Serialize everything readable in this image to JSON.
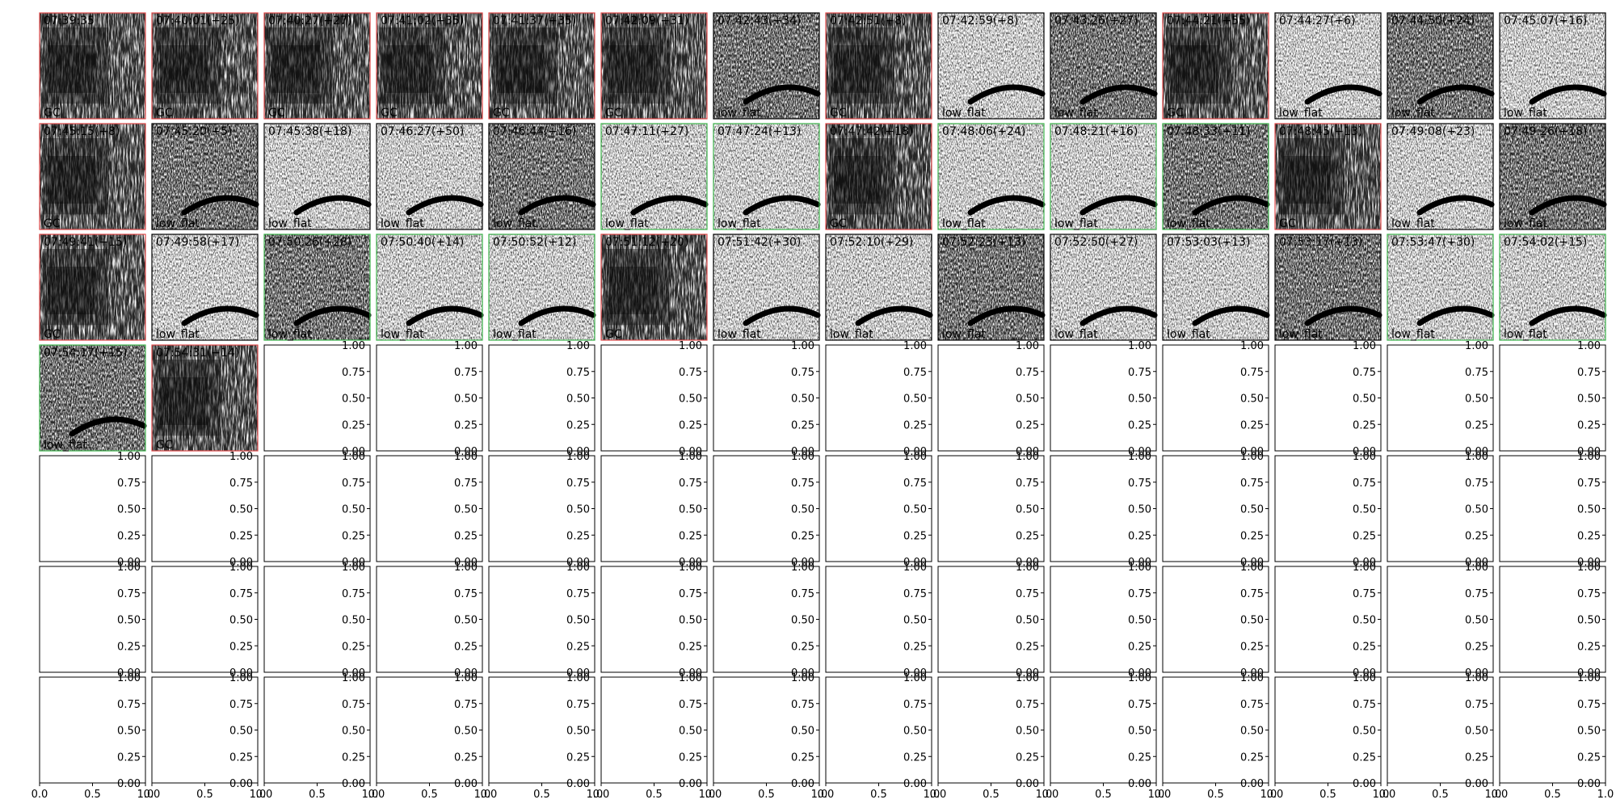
{
  "chart_data": {
    "type": "spectrogram-grid",
    "grid": {
      "rows": 7,
      "cols": 14
    },
    "border_colors": {
      "GC": "#e04a4a",
      "low_flat": "#000000",
      "green": "#3cb44b"
    },
    "empty_axis": {
      "xlim": [
        0.0,
        1.0
      ],
      "ylim": [
        0.0,
        1.0
      ],
      "x_ticks": [
        "0.0",
        "0.5",
        "1.0"
      ],
      "y_ticks": [
        "0.00",
        "0.25",
        "0.50",
        "0.75",
        "1.00"
      ]
    },
    "panels": [
      {
        "time": "07:39:35",
        "label": "GC",
        "border": "GC"
      },
      {
        "time": "07:40:01(+25)",
        "label": "GC",
        "border": "GC"
      },
      {
        "time": "07:40:27(+27)",
        "label": "GC",
        "border": "GC"
      },
      {
        "time": "07:41:02(+35)",
        "label": "GC",
        "border": "GC"
      },
      {
        "time": "07:41:37(+35)",
        "label": "GC",
        "border": "GC"
      },
      {
        "time": "07:42:09(+31)",
        "label": "GC",
        "border": "GC"
      },
      {
        "time": "07:42:43(+34)",
        "label": "low_flat",
        "border": "low_flat"
      },
      {
        "time": "07:42:51(+8)",
        "label": "GC",
        "border": "GC"
      },
      {
        "time": "07:42:59(+8)",
        "label": "low_flat",
        "border": "low_flat"
      },
      {
        "time": "07:43:26(+27)",
        "label": "low_flat",
        "border": "low_flat"
      },
      {
        "time": "07:44:21(+55)",
        "label": "GC",
        "border": "GC"
      },
      {
        "time": "07:44:27(+6)",
        "label": "low_flat",
        "border": "low_flat"
      },
      {
        "time": "07:44:50(+24)",
        "label": "low_flat",
        "border": "low_flat"
      },
      {
        "time": "07:45:07(+16)",
        "label": "low_flat",
        "border": "low_flat"
      },
      {
        "time": "07:45:15(+8)",
        "label": "GC",
        "border": "GC"
      },
      {
        "time": "07:45:20(+5)",
        "label": "low_flat",
        "border": "low_flat"
      },
      {
        "time": "07:45:38(+18)",
        "label": "low_flat",
        "border": "low_flat"
      },
      {
        "time": "07:46:27(+50)",
        "label": "low_flat",
        "border": "low_flat"
      },
      {
        "time": "07:46:44(+16)",
        "label": "low_flat",
        "border": "low_flat"
      },
      {
        "time": "07:47:11(+27)",
        "label": "low_flat",
        "border": "green"
      },
      {
        "time": "07:47:24(+13)",
        "label": "low_flat",
        "border": "green"
      },
      {
        "time": "07:47:42(+18)",
        "label": "GC",
        "border": "GC"
      },
      {
        "time": "07:48:06(+24)",
        "label": "low_flat",
        "border": "green"
      },
      {
        "time": "07:48:21(+16)",
        "label": "low_flat",
        "border": "green"
      },
      {
        "time": "07:48:33(+11)",
        "label": "low_flat",
        "border": "green"
      },
      {
        "time": "07:48:45(+13)",
        "label": "GC",
        "border": "GC"
      },
      {
        "time": "07:49:08(+23)",
        "label": "low_flat",
        "border": "low_flat"
      },
      {
        "time": "07:49:26(+18)",
        "label": "low_flat",
        "border": "low_flat"
      },
      {
        "time": "07:49:41(+15)",
        "label": "GC",
        "border": "GC"
      },
      {
        "time": "07:49:58(+17)",
        "label": "low_flat",
        "border": "low_flat"
      },
      {
        "time": "07:50:26(+28)",
        "label": "low_flat",
        "border": "green"
      },
      {
        "time": "07:50:40(+14)",
        "label": "low_flat",
        "border": "green"
      },
      {
        "time": "07:50:52(+12)",
        "label": "low_flat",
        "border": "green"
      },
      {
        "time": "07:51:12(+20)",
        "label": "GC",
        "border": "GC"
      },
      {
        "time": "07:51:42(+30)",
        "label": "low_flat",
        "border": "low_flat"
      },
      {
        "time": "07:52:10(+29)",
        "label": "low_flat",
        "border": "low_flat"
      },
      {
        "time": "07:52:23(+13)",
        "label": "low_flat",
        "border": "low_flat"
      },
      {
        "time": "07:52:50(+27)",
        "label": "low_flat",
        "border": "low_flat"
      },
      {
        "time": "07:53:03(+13)",
        "label": "low_flat",
        "border": "low_flat"
      },
      {
        "time": "07:53:17(+13)",
        "label": "low_flat",
        "border": "low_flat"
      },
      {
        "time": "07:53:47(+30)",
        "label": "low_flat",
        "border": "green"
      },
      {
        "time": "07:54:02(+15)",
        "label": "low_flat",
        "border": "green"
      },
      {
        "time": "07:54:17(+15)",
        "label": "low_flat",
        "border": "green"
      },
      {
        "time": "07:54:31(+14)",
        "label": "GC",
        "border": "GC"
      }
    ]
  }
}
